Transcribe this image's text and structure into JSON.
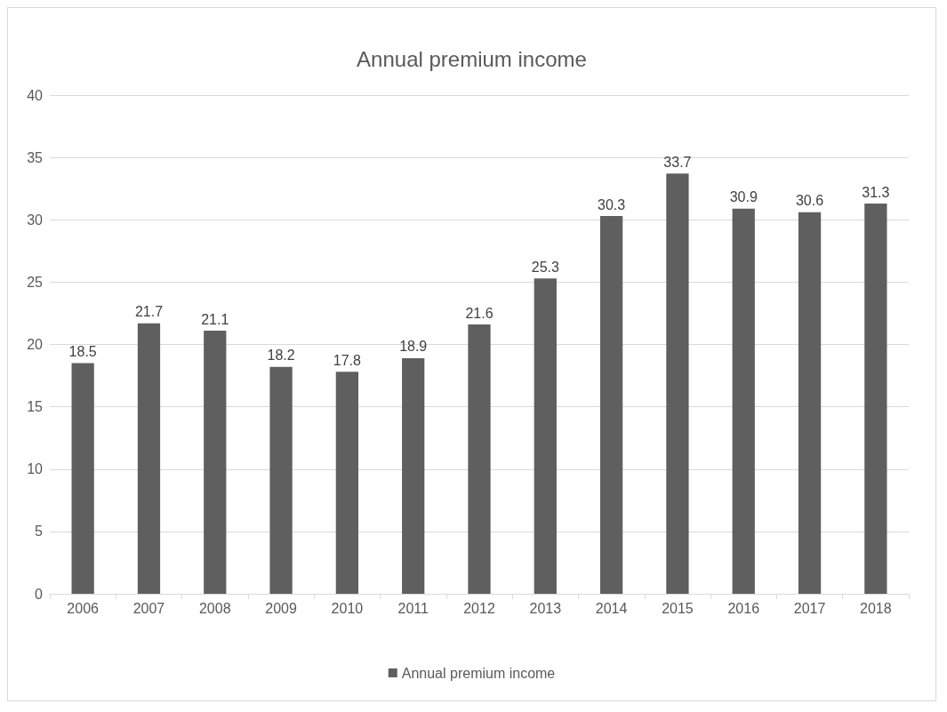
{
  "chart_data": {
    "type": "bar",
    "title": "Annual premium income",
    "categories": [
      "2006",
      "2007",
      "2008",
      "2009",
      "2010",
      "2011",
      "2012",
      "2013",
      "2014",
      "2015",
      "2016",
      "2017",
      "2018"
    ],
    "series": [
      {
        "name": "Annual premium income",
        "color": "#5f5f5f",
        "values": [
          18.5,
          21.7,
          21.1,
          18.2,
          17.8,
          18.9,
          21.6,
          25.3,
          30.3,
          33.7,
          30.9,
          30.6,
          31.3
        ]
      }
    ],
    "ylim": [
      0,
      40
    ],
    "yticks": [
      0,
      5,
      10,
      15,
      20,
      25,
      30,
      35,
      40
    ],
    "grid": "y",
    "legend": "bottom",
    "data_labels": true
  }
}
